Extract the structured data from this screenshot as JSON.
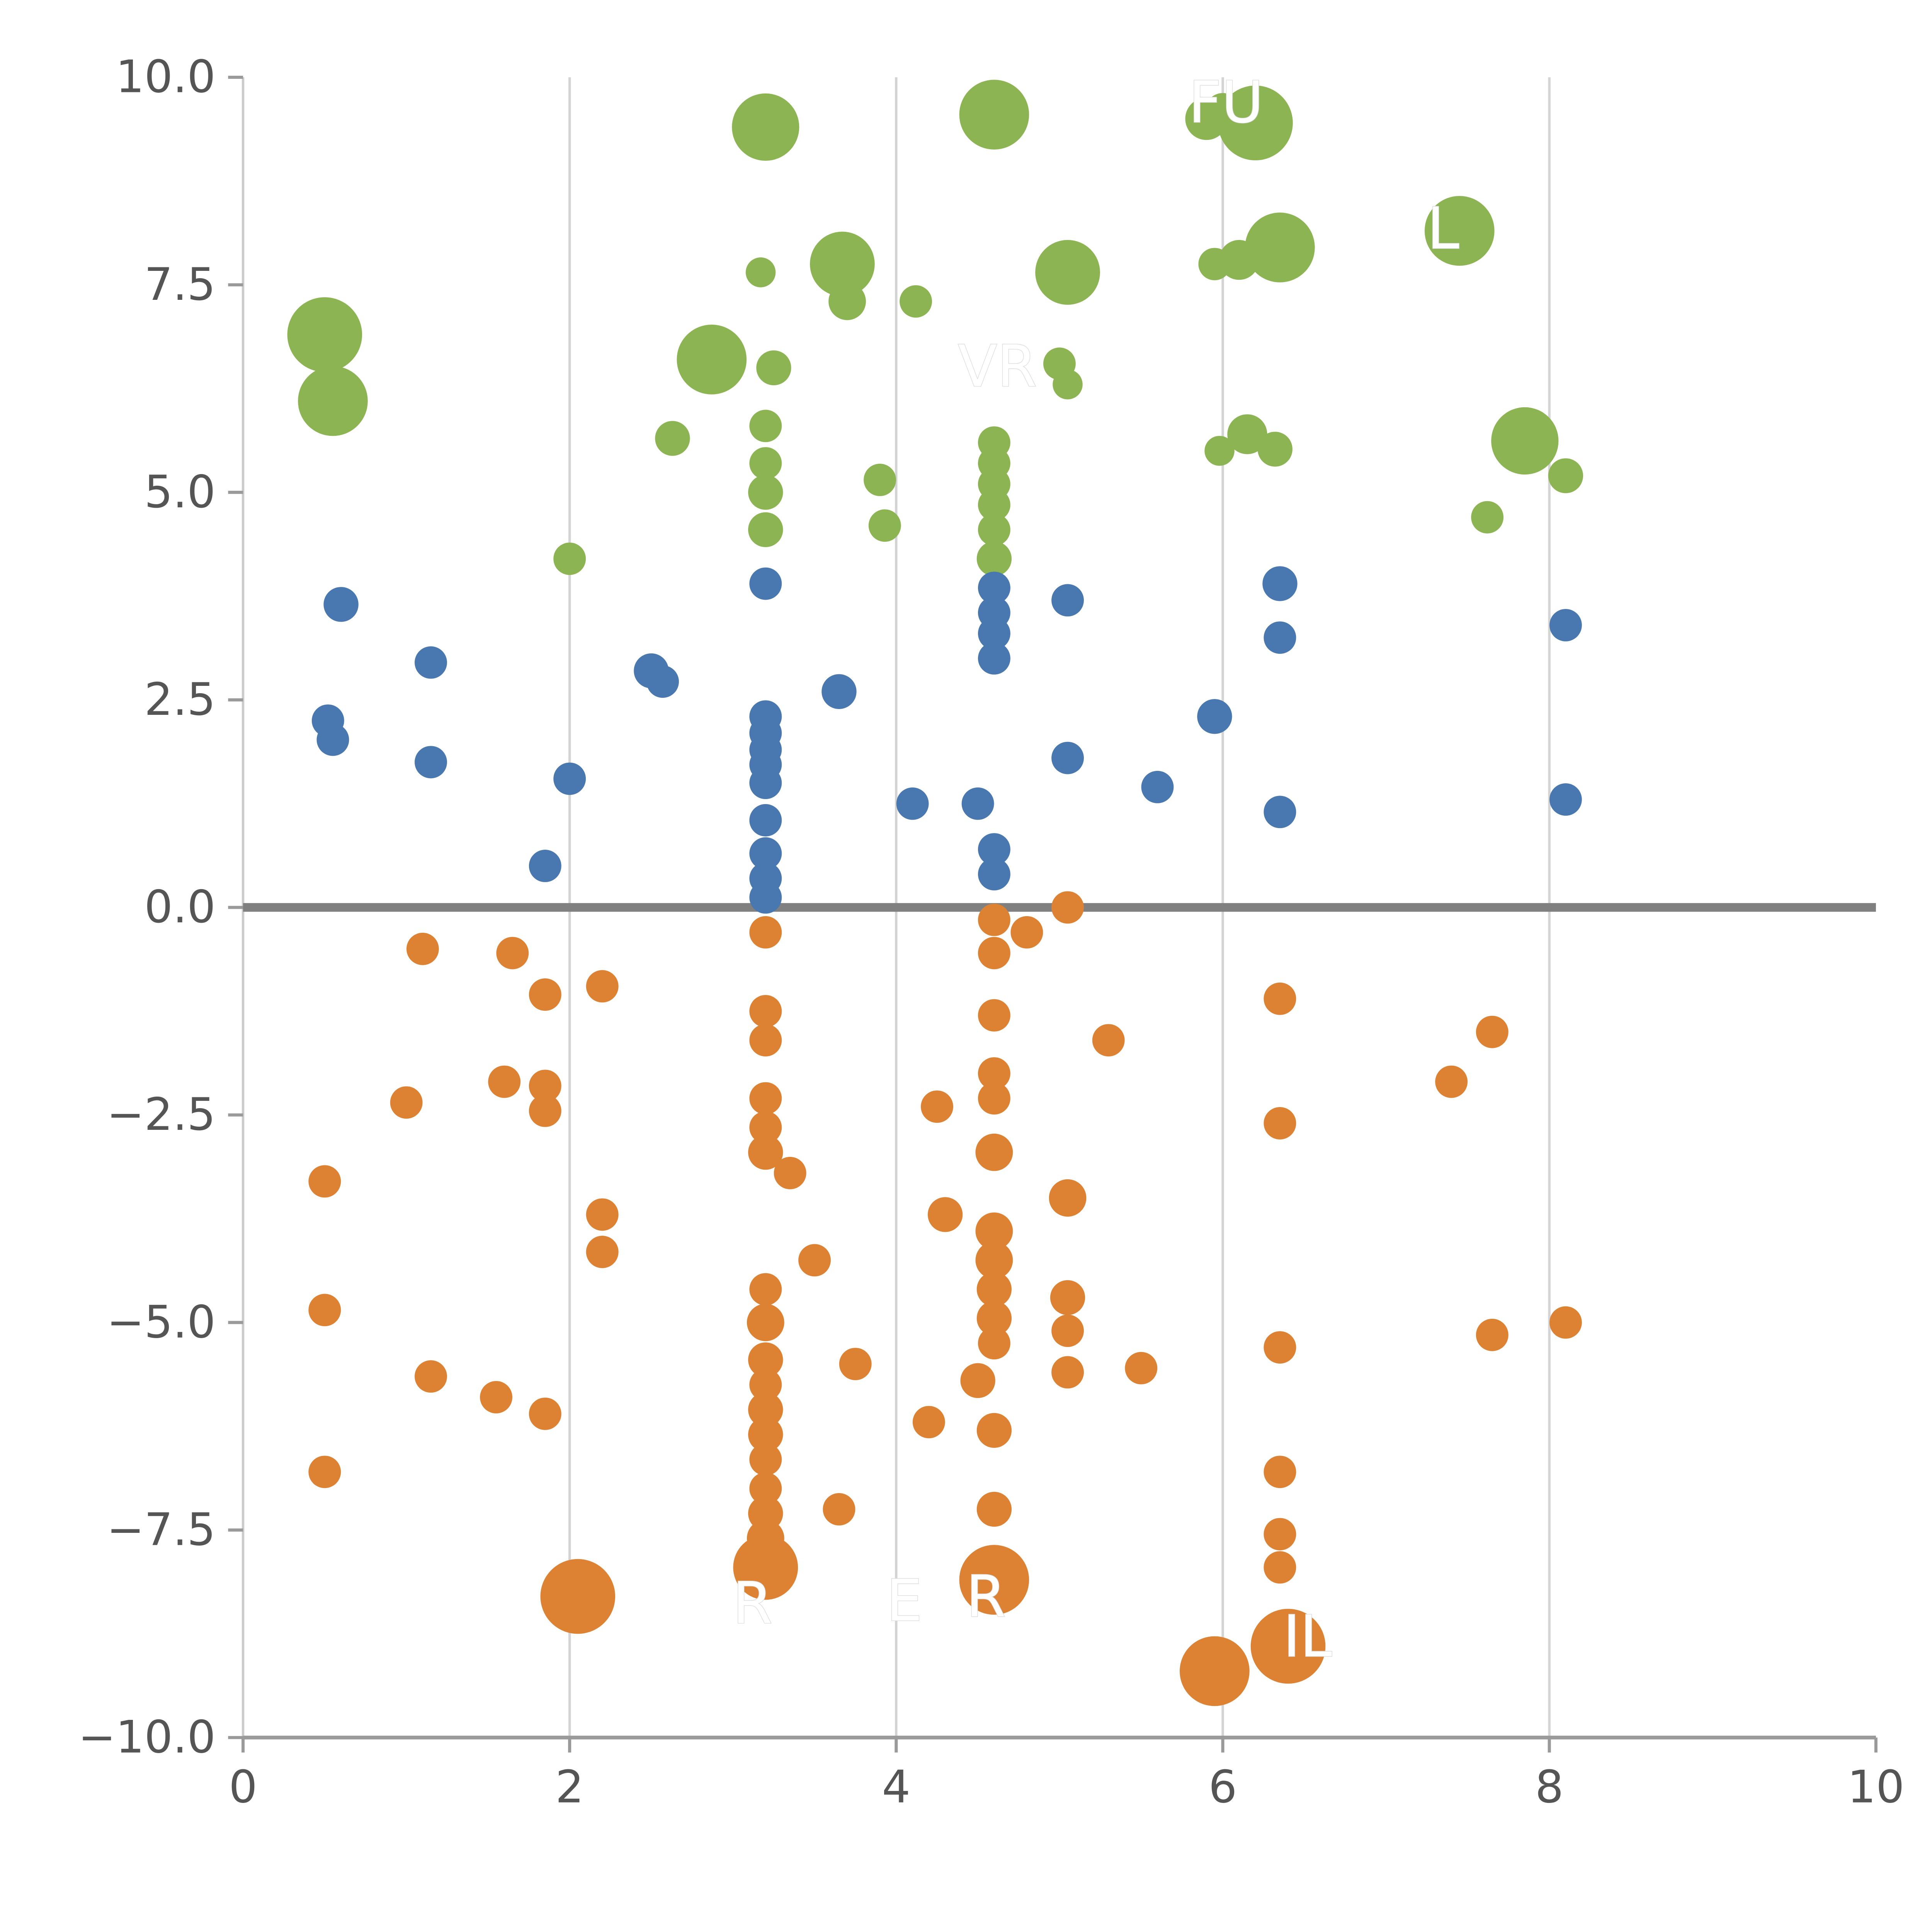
{
  "page": {
    "background": "#ffffff"
  },
  "chart_data": {
    "type": "scatter",
    "title": "",
    "xlabel": "",
    "ylabel": "",
    "xlim": [
      0,
      10
    ],
    "ylim": [
      -10,
      10
    ],
    "legend": "none",
    "grid": {
      "vertical_at": [
        2,
        4,
        6,
        8
      ],
      "horizontal": "off",
      "color": "#d4d4d4"
    },
    "zero_line": {
      "y": 0,
      "color": "#808080"
    },
    "axis_style": {
      "spine_color": "#9a9a9a",
      "left_spine_color": "#cccccc",
      "tick_color": "#9a9a9a",
      "tick_label_color": "#555555"
    },
    "x_ticks": [
      {
        "value": 0,
        "label": "0"
      },
      {
        "value": 2,
        "label": "2"
      },
      {
        "value": 4,
        "label": "4"
      },
      {
        "value": 6,
        "label": "6"
      },
      {
        "value": 8,
        "label": "8"
      },
      {
        "value": 10,
        "label": "10"
      }
    ],
    "y_ticks": [
      {
        "value": -10,
        "label": "−10.0"
      },
      {
        "value": -7.5,
        "label": "−7.5"
      },
      {
        "value": -5,
        "label": "−5.0"
      },
      {
        "value": -2.5,
        "label": "−2.5"
      },
      {
        "value": 0,
        "label": "0.0"
      },
      {
        "value": 2.5,
        "label": "2.5"
      },
      {
        "value": 5,
        "label": "5.0"
      },
      {
        "value": 7.5,
        "label": "7.5"
      },
      {
        "value": 10,
        "label": "10.0"
      }
    ],
    "series": [
      {
        "name": "green",
        "color": "#8db452",
        "points": [
          [
            0.5,
            6.9,
            30
          ],
          [
            0.55,
            6.1,
            28
          ],
          [
            3.2,
            9.4,
            27
          ],
          [
            4.6,
            9.55,
            28
          ],
          [
            5.9,
            9.5,
            17
          ],
          [
            6.2,
            9.45,
            30
          ],
          [
            6.0,
            9.6,
            14
          ],
          [
            3.17,
            7.65,
            12
          ],
          [
            3.67,
            7.75,
            26
          ],
          [
            3.7,
            7.3,
            15
          ],
          [
            4.12,
            7.3,
            13
          ],
          [
            5.05,
            7.65,
            26
          ],
          [
            6.35,
            7.95,
            28
          ],
          [
            6.1,
            7.8,
            16
          ],
          [
            5.95,
            7.75,
            13
          ],
          [
            7.45,
            8.15,
            28
          ],
          [
            2.87,
            6.6,
            28
          ],
          [
            3.25,
            6.5,
            14
          ],
          [
            5.0,
            6.55,
            13
          ],
          [
            5.05,
            6.3,
            12
          ],
          [
            2.63,
            5.65,
            14
          ],
          [
            6.15,
            5.7,
            16
          ],
          [
            6.32,
            5.52,
            14
          ],
          [
            5.98,
            5.5,
            12
          ],
          [
            7.85,
            5.62,
            27
          ],
          [
            8.1,
            5.2,
            14
          ],
          [
            7.62,
            4.7,
            13
          ],
          [
            3.2,
            5.8,
            13
          ],
          [
            3.2,
            5.35,
            13
          ],
          [
            3.2,
            5.0,
            14
          ],
          [
            3.2,
            4.55,
            14
          ],
          [
            3.9,
            5.15,
            13
          ],
          [
            3.93,
            4.6,
            13
          ],
          [
            4.6,
            5.6,
            13
          ],
          [
            4.6,
            5.35,
            13
          ],
          [
            4.6,
            5.1,
            13
          ],
          [
            4.6,
            4.85,
            13
          ],
          [
            4.6,
            4.55,
            13
          ],
          [
            4.6,
            4.2,
            14
          ],
          [
            2.0,
            4.2,
            13
          ]
        ]
      },
      {
        "name": "blue",
        "color": "#4878af",
        "points": [
          [
            0.6,
            3.65,
            14
          ],
          [
            1.15,
            2.95,
            13
          ],
          [
            0.52,
            2.25,
            13
          ],
          [
            0.55,
            2.02,
            13
          ],
          [
            1.15,
            1.75,
            13
          ],
          [
            2.5,
            2.85,
            14
          ],
          [
            2.57,
            2.72,
            13
          ],
          [
            3.2,
            3.9,
            13
          ],
          [
            5.05,
            3.7,
            13
          ],
          [
            6.35,
            3.9,
            14
          ],
          [
            6.35,
            3.25,
            13
          ],
          [
            4.6,
            3.85,
            13
          ],
          [
            4.6,
            3.55,
            13
          ],
          [
            4.6,
            3.3,
            13
          ],
          [
            4.6,
            3.0,
            13
          ],
          [
            3.65,
            2.6,
            14
          ],
          [
            2.0,
            1.55,
            13
          ],
          [
            3.2,
            2.3,
            13
          ],
          [
            3.2,
            2.1,
            13
          ],
          [
            3.2,
            1.9,
            13
          ],
          [
            3.2,
            1.72,
            13
          ],
          [
            3.2,
            1.5,
            13
          ],
          [
            5.95,
            2.3,
            14
          ],
          [
            5.05,
            1.8,
            13
          ],
          [
            5.6,
            1.45,
            13
          ],
          [
            4.1,
            1.25,
            13
          ],
          [
            4.5,
            1.25,
            13
          ],
          [
            6.35,
            1.15,
            13
          ],
          [
            8.1,
            3.4,
            13
          ],
          [
            8.1,
            1.3,
            13
          ],
          [
            3.2,
            1.05,
            13
          ],
          [
            3.2,
            0.65,
            13
          ],
          [
            4.6,
            0.7,
            13
          ],
          [
            4.6,
            0.4,
            13
          ],
          [
            3.2,
            0.35,
            13
          ],
          [
            1.85,
            0.5,
            13
          ],
          [
            3.2,
            0.12,
            13
          ]
        ]
      },
      {
        "name": "orange",
        "color": "#dd8233",
        "points": [
          [
            1.1,
            -0.5,
            13
          ],
          [
            1.65,
            -0.55,
            13
          ],
          [
            5.05,
            0.0,
            13
          ],
          [
            4.6,
            -0.15,
            13
          ],
          [
            4.8,
            -0.3,
            13
          ],
          [
            3.2,
            -0.3,
            13
          ],
          [
            1.85,
            -1.05,
            13
          ],
          [
            2.2,
            -0.95,
            13
          ],
          [
            4.6,
            -0.55,
            13
          ],
          [
            3.2,
            -1.25,
            13
          ],
          [
            4.6,
            -1.3,
            13
          ],
          [
            3.2,
            -1.6,
            13
          ],
          [
            5.3,
            -1.6,
            13
          ],
          [
            6.35,
            -1.1,
            13
          ],
          [
            7.65,
            -1.5,
            13
          ],
          [
            1.0,
            -2.35,
            13
          ],
          [
            1.6,
            -2.1,
            13
          ],
          [
            1.85,
            -2.15,
            13
          ],
          [
            1.85,
            -2.45,
            13
          ],
          [
            3.2,
            -2.3,
            13
          ],
          [
            3.2,
            -2.65,
            13
          ],
          [
            4.6,
            -2.0,
            13
          ],
          [
            4.6,
            -2.3,
            13
          ],
          [
            4.25,
            -2.4,
            13
          ],
          [
            7.4,
            -2.1,
            13
          ],
          [
            6.35,
            -2.6,
            13
          ],
          [
            3.2,
            -2.95,
            14
          ],
          [
            4.6,
            -2.95,
            15
          ],
          [
            3.35,
            -3.2,
            13
          ],
          [
            0.5,
            -3.3,
            13
          ],
          [
            5.05,
            -3.5,
            15
          ],
          [
            4.3,
            -3.7,
            14
          ],
          [
            4.6,
            -3.9,
            15
          ],
          [
            2.2,
            -3.7,
            13
          ],
          [
            2.2,
            -4.15,
            13
          ],
          [
            3.5,
            -4.25,
            13
          ],
          [
            4.6,
            -4.25,
            15
          ],
          [
            4.6,
            -4.6,
            14
          ],
          [
            3.2,
            -4.6,
            13
          ],
          [
            5.05,
            -4.7,
            14
          ],
          [
            0.5,
            -4.85,
            13
          ],
          [
            3.2,
            -5.0,
            15
          ],
          [
            4.6,
            -4.95,
            14
          ],
          [
            5.05,
            -5.1,
            13
          ],
          [
            4.6,
            -5.25,
            13
          ],
          [
            6.35,
            -5.3,
            13
          ],
          [
            7.65,
            -5.15,
            13
          ],
          [
            8.1,
            -5.0,
            13
          ],
          [
            3.2,
            -5.45,
            14
          ],
          [
            3.75,
            -5.5,
            13
          ],
          [
            4.5,
            -5.7,
            14
          ],
          [
            5.5,
            -5.55,
            13
          ],
          [
            5.05,
            -5.6,
            13
          ],
          [
            1.15,
            -5.65,
            13
          ],
          [
            3.2,
            -5.75,
            13
          ],
          [
            1.55,
            -5.9,
            13
          ],
          [
            3.2,
            -6.05,
            14
          ],
          [
            1.85,
            -6.1,
            13
          ],
          [
            3.2,
            -6.35,
            14
          ],
          [
            4.2,
            -6.2,
            13
          ],
          [
            4.6,
            -6.3,
            14
          ],
          [
            3.2,
            -6.65,
            13
          ],
          [
            0.5,
            -6.8,
            13
          ],
          [
            6.35,
            -6.8,
            13
          ],
          [
            3.2,
            -7.0,
            13
          ],
          [
            3.2,
            -7.3,
            14
          ],
          [
            3.65,
            -7.25,
            13
          ],
          [
            4.6,
            -7.25,
            14
          ],
          [
            3.2,
            -7.6,
            15
          ],
          [
            6.35,
            -7.55,
            13
          ],
          [
            6.35,
            -7.95,
            13
          ],
          [
            3.2,
            -7.95,
            26
          ],
          [
            4.6,
            -8.1,
            28
          ],
          [
            2.05,
            -8.3,
            30
          ],
          [
            6.4,
            -8.9,
            30
          ],
          [
            5.95,
            -9.2,
            28
          ]
        ]
      }
    ],
    "annotations": [
      {
        "text": "FU",
        "x": 6.02,
        "y": 9.7,
        "color": "#ffffff"
      },
      {
        "text": "L",
        "x": 7.35,
        "y": 8.18,
        "color": "#ffffff"
      },
      {
        "text": "VR",
        "x": 4.62,
        "y": 6.52,
        "color": "#ffffff"
      },
      {
        "text": "R",
        "x": 3.12,
        "y": -8.38,
        "color": "#ffffff"
      },
      {
        "text": "E",
        "x": 4.05,
        "y": -8.35,
        "color": "#ffffff"
      },
      {
        "text": "R",
        "x": 4.55,
        "y": -8.3,
        "color": "#ffffff"
      },
      {
        "text": "IL",
        "x": 6.52,
        "y": -8.78,
        "color": "#ffffff"
      }
    ]
  }
}
